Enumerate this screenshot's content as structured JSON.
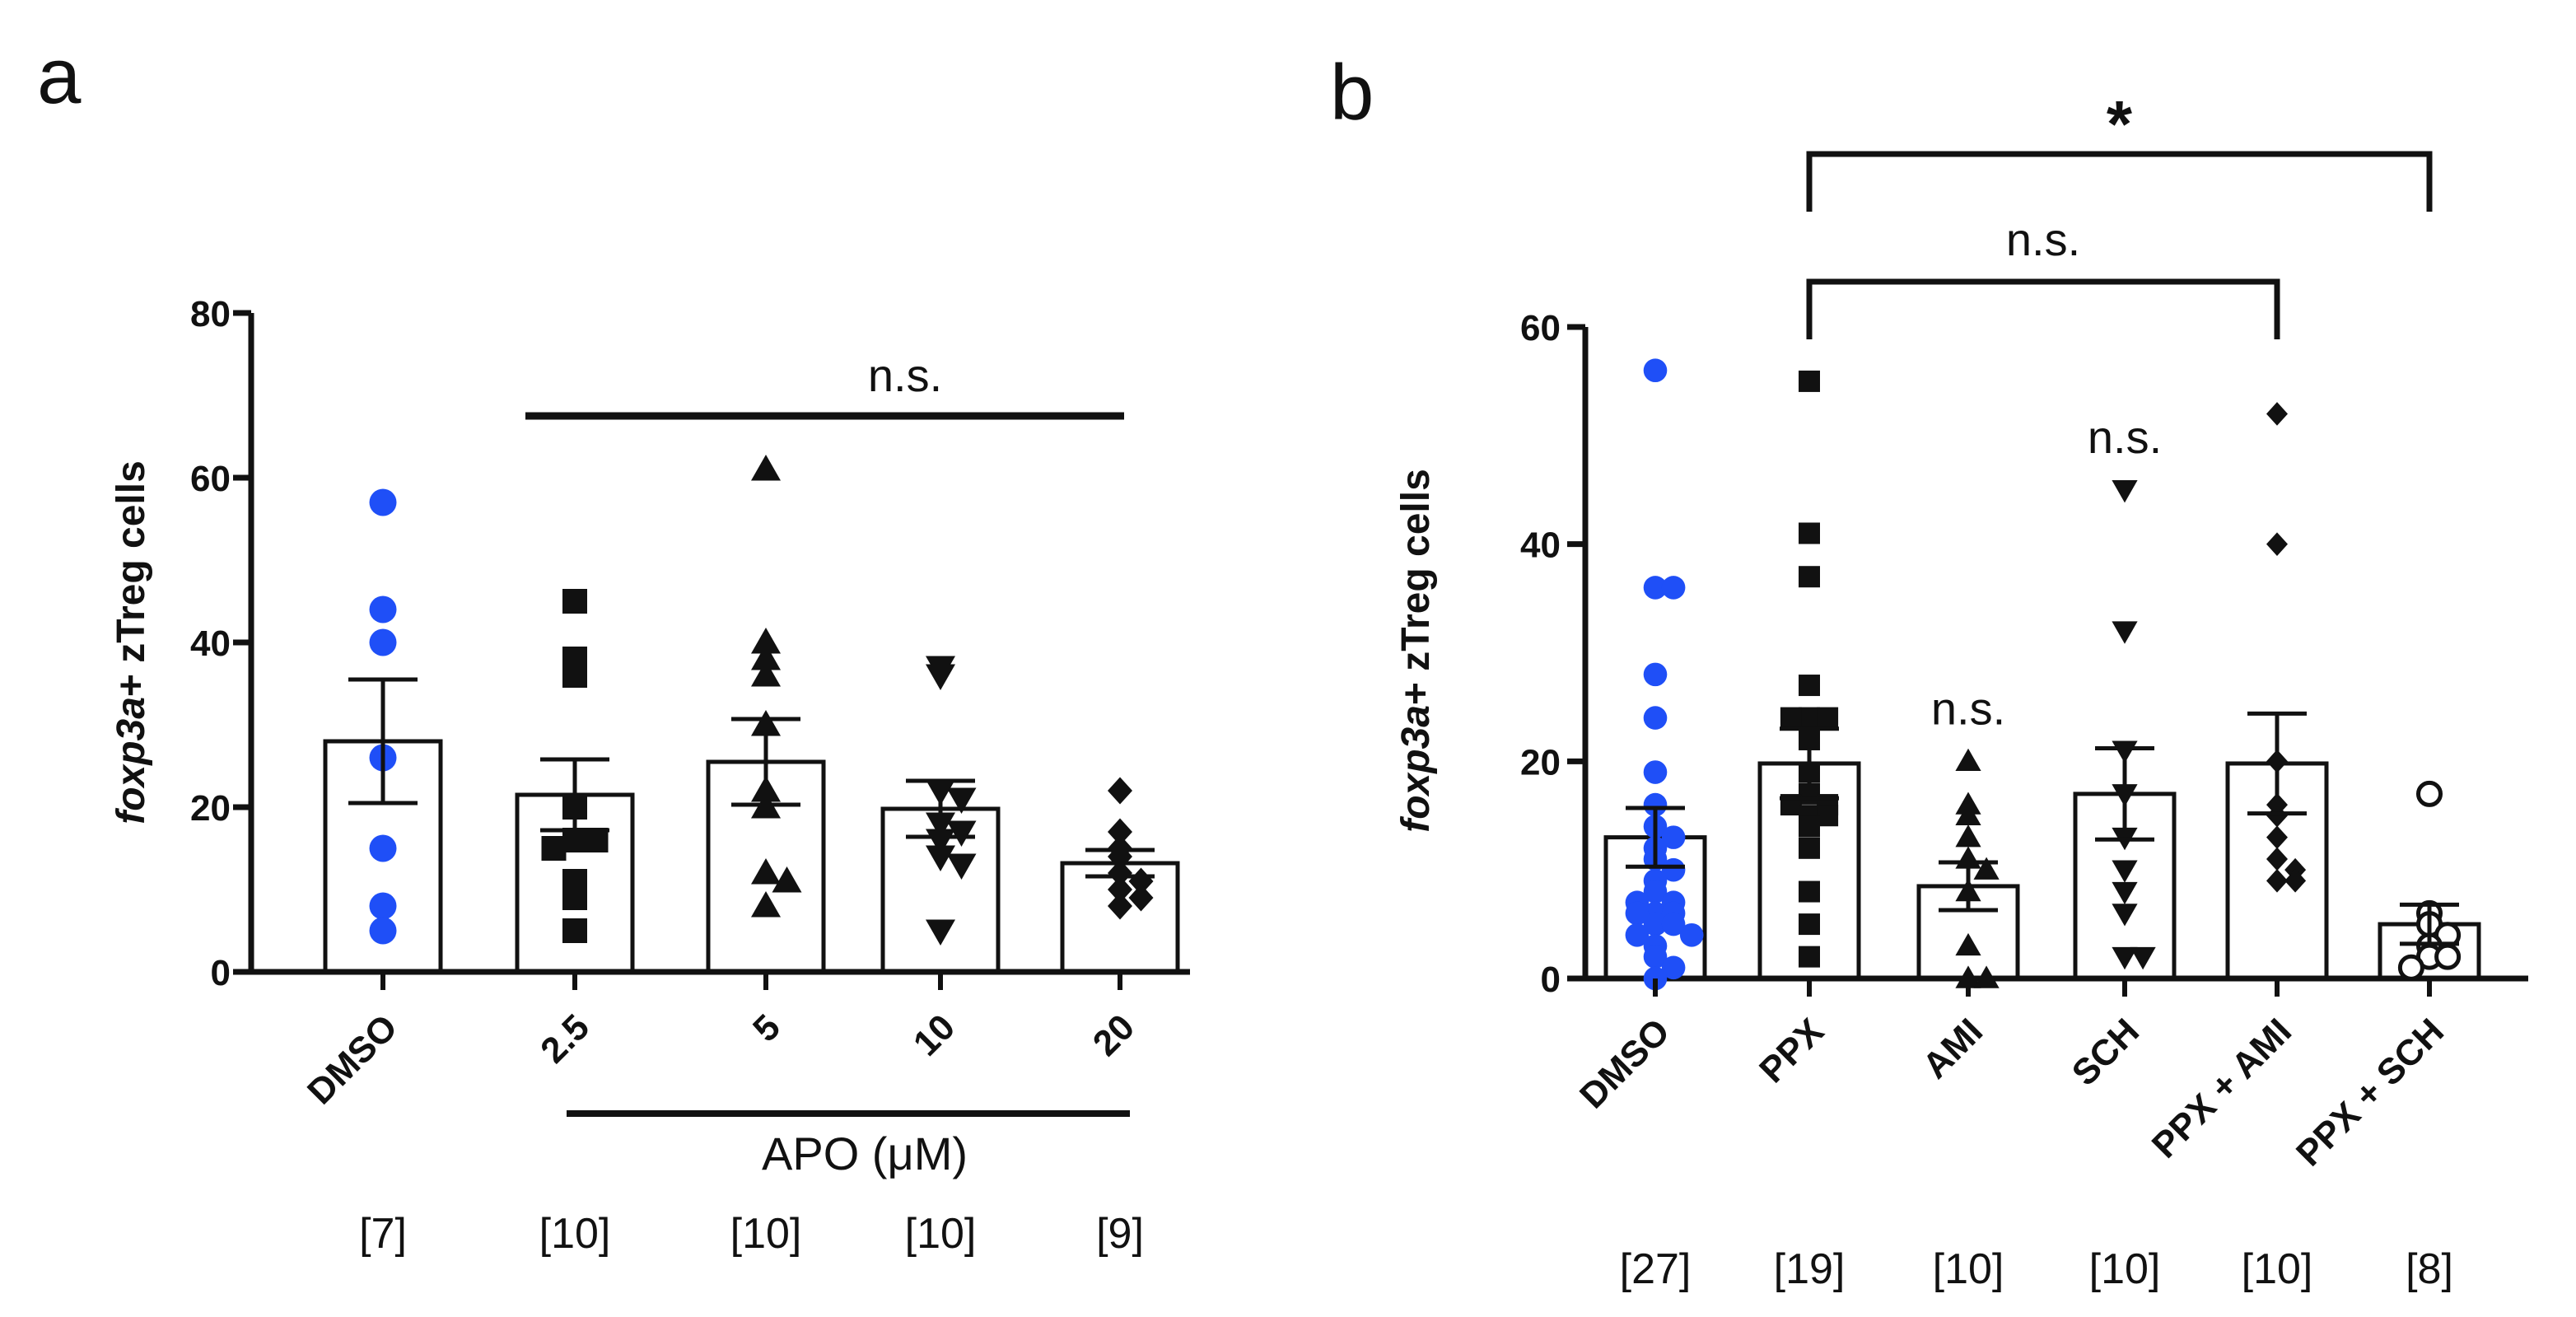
{
  "panels": {
    "a": {
      "letter": "a"
    },
    "b": {
      "letter": "b"
    }
  },
  "chart_data": [
    {
      "type": "bar",
      "panel": "a",
      "ylabel_italic": "foxp3a",
      "ylabel_rest": "+ zTreg cells",
      "ylim": [
        0,
        80
      ],
      "yticks": [
        0,
        20,
        40,
        60,
        80
      ],
      "categories": [
        "DMSO",
        "2.5",
        "5",
        "10",
        "20"
      ],
      "group_label": "APO (μM)",
      "n_labels": [
        "[7]",
        "[10]",
        "[10]",
        "[10]",
        "[9]"
      ],
      "markers": [
        "circle-blue",
        "square",
        "triangle",
        "triangle-down",
        "diamond"
      ],
      "means": [
        28,
        21.5,
        25.5,
        19.8,
        13.2
      ],
      "sem": [
        7.5,
        4.3,
        5.2,
        3.4,
        1.6
      ],
      "points": [
        [
          57,
          44,
          40,
          26,
          15,
          8,
          5
        ],
        [
          45,
          38,
          36,
          20,
          16,
          16,
          15,
          11,
          9,
          5
        ],
        [
          61,
          40,
          38,
          36,
          30,
          22,
          20,
          12,
          11,
          8
        ],
        [
          37,
          36,
          22,
          21,
          18,
          17,
          16,
          14,
          13,
          5
        ],
        [
          22,
          17,
          15,
          14,
          12,
          11,
          10,
          9,
          8
        ]
      ],
      "significance": [
        {
          "label": "n.s.",
          "from": 1,
          "to": 4,
          "style": "line"
        }
      ]
    },
    {
      "type": "bar",
      "panel": "b",
      "ylabel_italic": "foxp3a",
      "ylabel_rest": "+ zTreg cells",
      "ylim": [
        0,
        60
      ],
      "yticks": [
        0,
        20,
        40,
        60
      ],
      "categories": [
        "DMSO",
        "PPX",
        "AMI",
        "SCH",
        "PPX + AMI",
        "PPX + SCH"
      ],
      "n_labels": [
        "[27]",
        "[19]",
        "[10]",
        "[10]",
        "[10]",
        "[8]"
      ],
      "markers": [
        "circle-blue",
        "square",
        "triangle",
        "triangle-down",
        "diamond",
        "circle-open"
      ],
      "means": [
        13,
        19.8,
        8.5,
        17,
        19.8,
        5
      ],
      "sem": [
        2.7,
        3.2,
        2.2,
        4.2,
        4.6,
        1.8
      ],
      "points": [
        [
          56,
          36,
          36,
          28,
          24,
          19,
          16,
          14,
          13,
          12,
          11,
          10,
          9,
          8,
          7,
          7,
          6,
          6,
          6,
          5,
          5,
          4,
          4,
          3,
          2,
          1,
          0
        ],
        [
          55,
          41,
          37,
          27,
          24,
          24,
          24,
          22,
          19,
          17,
          16,
          16,
          15,
          15,
          14,
          12,
          8,
          5,
          2
        ],
        [
          20,
          16,
          15,
          13,
          11,
          10,
          8,
          3,
          0,
          0
        ],
        [
          45,
          32,
          21,
          17,
          13,
          10,
          8,
          6,
          2,
          2
        ],
        [
          52,
          40,
          20,
          16,
          15,
          13,
          11,
          10,
          9,
          9
        ],
        [
          17,
          6,
          5,
          4,
          3,
          2,
          2,
          1
        ]
      ],
      "col_labels": [
        "",
        "",
        "n.s.",
        "n.s.",
        "",
        ""
      ],
      "significance": [
        {
          "label": "n.s.",
          "from": 1,
          "to": 4,
          "style": "bracket"
        },
        {
          "label": "*",
          "from": 1,
          "to": 5,
          "style": "bracket"
        }
      ]
    }
  ],
  "colors": {
    "blue": "#1f4ff7",
    "black": "#111111"
  }
}
